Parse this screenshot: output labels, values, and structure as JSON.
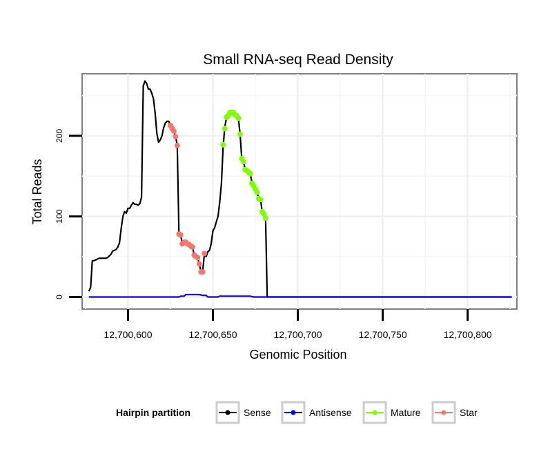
{
  "chart_data": {
    "type": "line",
    "title": "Small RNA-seq Read Density",
    "xlabel": "Genomic Position",
    "ylabel": "Total Reads",
    "xlim": [
      12700573,
      12700829
    ],
    "ylim": [
      -15,
      277
    ],
    "x_ticks": [
      12700600,
      12700650,
      12700700,
      12700750,
      12700800
    ],
    "x_tick_labels": [
      "12,700,600",
      "12,700,650",
      "12,700,700",
      "12,700,750",
      "12,700,800"
    ],
    "y_ticks": [
      0,
      100,
      200
    ],
    "y_tick_labels": [
      "0",
      "100",
      "200"
    ],
    "grid": true,
    "legend": {
      "title": "Hairpin partition",
      "position": "bottom",
      "entries": [
        {
          "name": "Sense",
          "color": "#000000"
        },
        {
          "name": "Antisense",
          "color": "#0000ff"
        },
        {
          "name": "Mature",
          "color": "#7fff00"
        },
        {
          "name": "Star",
          "color": "#f8766d"
        }
      ]
    },
    "series": [
      {
        "name": "Sense",
        "color": "#000000",
        "points": [
          [
            12700577,
            7
          ],
          [
            12700578,
            12
          ],
          [
            12700579,
            45
          ],
          [
            12700580,
            45
          ],
          [
            12700581,
            46
          ],
          [
            12700582,
            47
          ],
          [
            12700583,
            48
          ],
          [
            12700584,
            48
          ],
          [
            12700585,
            48
          ],
          [
            12700586,
            48
          ],
          [
            12700587,
            48
          ],
          [
            12700588,
            49
          ],
          [
            12700589,
            51
          ],
          [
            12700590,
            53
          ],
          [
            12700591,
            57
          ],
          [
            12700592,
            58
          ],
          [
            12700593,
            59
          ],
          [
            12700594,
            62
          ],
          [
            12700595,
            67
          ],
          [
            12700596,
            85
          ],
          [
            12700597,
            100
          ],
          [
            12700598,
            106
          ],
          [
            12700599,
            104
          ],
          [
            12700600,
            110
          ],
          [
            12700601,
            110
          ],
          [
            12700602,
            114
          ],
          [
            12700603,
            117
          ],
          [
            12700604,
            115
          ],
          [
            12700605,
            115
          ],
          [
            12700606,
            114
          ],
          [
            12700607,
            116
          ],
          [
            12700608,
            124
          ],
          [
            12700609,
            262
          ],
          [
            12700610,
            268
          ],
          [
            12700611,
            265
          ],
          [
            12700612,
            258
          ],
          [
            12700613,
            258
          ],
          [
            12700614,
            253
          ],
          [
            12700615,
            246
          ],
          [
            12700616,
            228
          ],
          [
            12700617,
            203
          ],
          [
            12700618,
            192
          ],
          [
            12700619,
            195
          ],
          [
            12700620,
            200
          ],
          [
            12700621,
            210
          ],
          [
            12700622,
            216
          ],
          [
            12700623,
            218
          ],
          [
            12700624,
            218
          ],
          [
            12700625,
            213
          ],
          [
            12700626,
            209
          ],
          [
            12700627,
            206
          ],
          [
            12700628,
            199
          ],
          [
            12700629,
            189
          ],
          [
            12700630,
            79
          ],
          [
            12700631,
            77
          ],
          [
            12700632,
            66
          ],
          [
            12700633,
            68
          ],
          [
            12700634,
            68
          ],
          [
            12700635,
            67
          ],
          [
            12700636,
            65
          ],
          [
            12700637,
            63
          ],
          [
            12700638,
            62
          ],
          [
            12700639,
            52
          ],
          [
            12700640,
            50
          ],
          [
            12700641,
            49
          ],
          [
            12700642,
            41
          ],
          [
            12700643,
            31
          ],
          [
            12700644,
            31
          ],
          [
            12700645,
            54
          ],
          [
            12700646,
            50
          ],
          [
            12700647,
            56
          ],
          [
            12700648,
            58
          ],
          [
            12700649,
            66
          ],
          [
            12700650,
            82
          ],
          [
            12700651,
            86
          ],
          [
            12700652,
            93
          ],
          [
            12700653,
            100
          ],
          [
            12700654,
            117
          ],
          [
            12700655,
            140
          ],
          [
            12700656,
            186
          ],
          [
            12700657,
            211
          ],
          [
            12700658,
            222
          ],
          [
            12700659,
            226
          ],
          [
            12700660,
            229
          ],
          [
            12700661,
            228
          ],
          [
            12700662,
            228
          ],
          [
            12700663,
            226
          ],
          [
            12700664,
            225
          ],
          [
            12700665,
            222
          ],
          [
            12700666,
            202
          ],
          [
            12700667,
            172
          ],
          [
            12700668,
            168
          ],
          [
            12700669,
            158
          ],
          [
            12700670,
            157
          ],
          [
            12700671,
            155
          ],
          [
            12700672,
            153
          ],
          [
            12700673,
            142
          ],
          [
            12700674,
            138
          ],
          [
            12700675,
            134
          ],
          [
            12700676,
            130
          ],
          [
            12700677,
            122
          ],
          [
            12700678,
            122
          ],
          [
            12700679,
            106
          ],
          [
            12700680,
            103
          ],
          [
            12700681,
            98
          ],
          [
            12700682,
            0
          ],
          [
            12700700,
            0
          ],
          [
            12700750,
            0
          ],
          [
            12700800,
            0
          ],
          [
            12700826,
            0
          ]
        ]
      },
      {
        "name": "Antisense",
        "color": "#0000ff",
        "points": [
          [
            12700577,
            0
          ],
          [
            12700630,
            0
          ],
          [
            12700631,
            1
          ],
          [
            12700633,
            1
          ],
          [
            12700634,
            3
          ],
          [
            12700642,
            3
          ],
          [
            12700644,
            2
          ],
          [
            12700646,
            2
          ],
          [
            12700647,
            0
          ],
          [
            12700653,
            0
          ],
          [
            12700654,
            1
          ],
          [
            12700672,
            1
          ],
          [
            12700674,
            0
          ],
          [
            12700826,
            0
          ]
        ]
      },
      {
        "name": "Mature",
        "color": "#7fff00",
        "points": [
          [
            12700656,
            189
          ],
          [
            12700657,
            209
          ],
          [
            12700658,
            223
          ],
          [
            12700659,
            225
          ],
          [
            12700660,
            229
          ],
          [
            12700661,
            229
          ],
          [
            12700662,
            229
          ],
          [
            12700663,
            226
          ],
          [
            12700664,
            225
          ],
          [
            12700665,
            222
          ],
          [
            12700666,
            202
          ],
          [
            12700667,
            172
          ],
          [
            12700668,
            168
          ],
          [
            12700669,
            158
          ],
          [
            12700670,
            157
          ],
          [
            12700671,
            155
          ],
          [
            12700672,
            153
          ],
          [
            12700673,
            141
          ],
          [
            12700674,
            138
          ],
          [
            12700675,
            134
          ],
          [
            12700676,
            130
          ],
          [
            12700677,
            122
          ],
          [
            12700678,
            121
          ],
          [
            12700679,
            106
          ],
          [
            12700680,
            103
          ],
          [
            12700681,
            98
          ]
        ]
      },
      {
        "name": "Star",
        "color": "#f8766d",
        "points": [
          [
            12700625,
            213
          ],
          [
            12700626,
            209
          ],
          [
            12700627,
            206
          ],
          [
            12700628,
            199
          ],
          [
            12700629,
            188
          ],
          [
            12700630,
            78
          ],
          [
            12700631,
            77
          ],
          [
            12700632,
            66
          ],
          [
            12700633,
            68
          ],
          [
            12700634,
            68
          ],
          [
            12700635,
            66
          ],
          [
            12700636,
            65
          ],
          [
            12700637,
            63
          ],
          [
            12700638,
            62
          ],
          [
            12700639,
            52
          ],
          [
            12700640,
            50
          ],
          [
            12700641,
            49
          ],
          [
            12700642,
            41
          ],
          [
            12700643,
            31
          ],
          [
            12700644,
            31
          ],
          [
            12700645,
            54
          ]
        ]
      }
    ]
  }
}
